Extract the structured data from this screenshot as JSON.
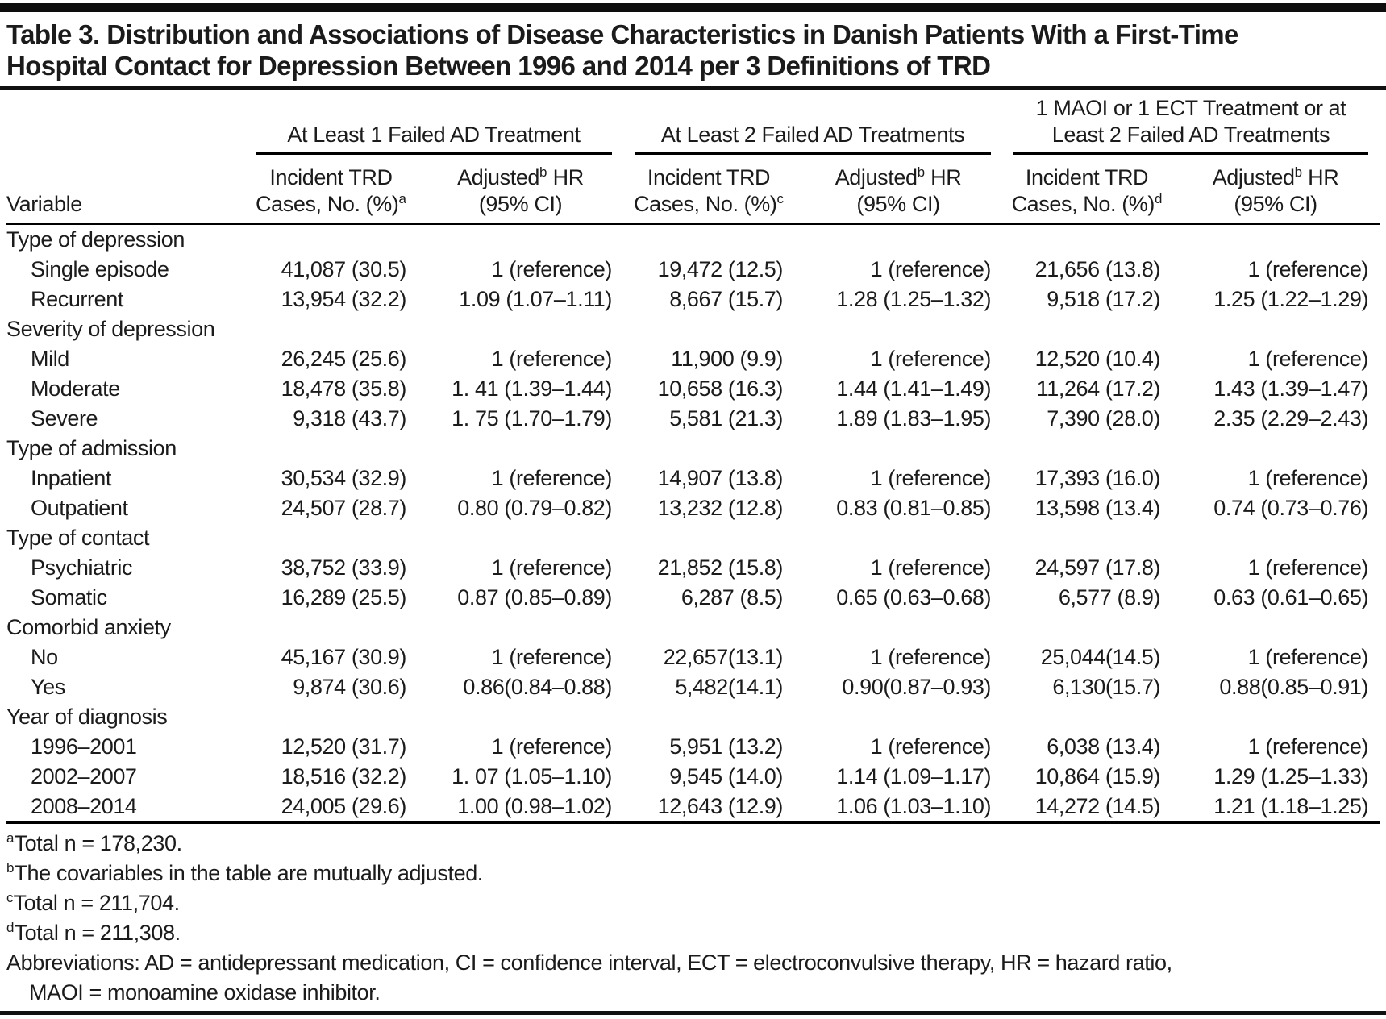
{
  "title_lines": [
    "Table 3. Distribution and Associations of Disease Characteristics in Danish Patients With a First-Time",
    "Hospital Contact for Depression Between 1996 and 2014 per 3 Definitions of TRD"
  ],
  "header": {
    "variable": "Variable",
    "groups": [
      {
        "label_lines": [
          "At Least 1 Failed AD Treatment"
        ],
        "cases": {
          "line1": "Incident TRD",
          "line2": "Cases, No. (%)",
          "sup": "a"
        },
        "hr": {
          "pre": "Adjusted",
          "sup": "b",
          "post": " HR",
          "line2": "(95% CI)"
        }
      },
      {
        "label_lines": [
          "At Least 2 Failed AD Treatments"
        ],
        "cases": {
          "line1": "Incident TRD",
          "line2": "Cases, No. (%)",
          "sup": "c"
        },
        "hr": {
          "pre": "Adjusted",
          "sup": "b",
          "post": " HR",
          "line2": "(95% CI)"
        }
      },
      {
        "label_lines": [
          "1 MAOI or 1 ECT Treatment or at",
          "Least 2 Failed AD Treatments"
        ],
        "cases": {
          "line1": "Incident TRD",
          "line2": "Cases, No. (%)",
          "sup": "d"
        },
        "hr": {
          "pre": "Adjusted",
          "sup": "b",
          "post": " HR",
          "line2": "(95% CI)"
        }
      }
    ]
  },
  "rows": [
    {
      "type": "section",
      "label": "Type of depression"
    },
    {
      "type": "data",
      "label": "Single episode",
      "cells": [
        "41,087 (30.5)",
        "1 (reference)",
        "19,472 (12.5)",
        "1 (reference)",
        "21,656 (13.8)",
        "1 (reference)"
      ]
    },
    {
      "type": "data",
      "label": "Recurrent",
      "cells": [
        "13,954 (32.2)",
        "1.09 (1.07–1.11)",
        "8,667 (15.7)",
        "1.28 (1.25–1.32)",
        "9,518 (17.2)",
        "1.25 (1.22–1.29)"
      ]
    },
    {
      "type": "section",
      "label": "Severity of depression"
    },
    {
      "type": "data",
      "label": "Mild",
      "cells": [
        "26,245 (25.6)",
        "1 (reference)",
        "11,900 (9.9)",
        "1 (reference)",
        "12,520 (10.4)",
        "1 (reference)"
      ]
    },
    {
      "type": "data",
      "label": "Moderate",
      "cells": [
        "18,478 (35.8)",
        "1. 41 (1.39–1.44)",
        "10,658 (16.3)",
        "1.44 (1.41–1.49)",
        "11,264 (17.2)",
        "1.43 (1.39–1.47)"
      ]
    },
    {
      "type": "data",
      "label": "Severe",
      "cells": [
        "9,318 (43.7)",
        "1. 75 (1.70–1.79)",
        "5,581 (21.3)",
        "1.89 (1.83–1.95)",
        "7,390 (28.0)",
        "2.35 (2.29–2.43)"
      ]
    },
    {
      "type": "section",
      "label": "Type of admission"
    },
    {
      "type": "data",
      "label": "Inpatient",
      "cells": [
        "30,534 (32.9)",
        "1 (reference)",
        "14,907 (13.8)",
        "1 (reference)",
        "17,393 (16.0)",
        "1 (reference)"
      ]
    },
    {
      "type": "data",
      "label": "Outpatient",
      "cells": [
        "24,507 (28.7)",
        "0.80 (0.79–0.82)",
        "13,232 (12.8)",
        "0.83 (0.81–0.85)",
        "13,598 (13.4)",
        "0.74 (0.73–0.76)"
      ]
    },
    {
      "type": "section",
      "label": "Type of contact"
    },
    {
      "type": "data",
      "label": "Psychiatric",
      "cells": [
        "38,752 (33.9)",
        "1 (reference)",
        "21,852 (15.8)",
        "1 (reference)",
        "24,597 (17.8)",
        "1 (reference)"
      ]
    },
    {
      "type": "data",
      "label": "Somatic",
      "cells": [
        "16,289 (25.5)",
        "0.87 (0.85–0.89)",
        "6,287 (8.5)",
        "0.65 (0.63–0.68)",
        "6,577 (8.9)",
        "0.63 (0.61–0.65)"
      ]
    },
    {
      "type": "section",
      "label": "Comorbid anxiety"
    },
    {
      "type": "data",
      "label": "No",
      "cells": [
        "45,167 (30.9)",
        "1 (reference)",
        "22,657(13.1)",
        "1 (reference)",
        "25,044(14.5)",
        "1 (reference)"
      ]
    },
    {
      "type": "data",
      "label": "Yes",
      "cells": [
        "9,874 (30.6)",
        "0.86(0.84–0.88)",
        "5,482(14.1)",
        "0.90(0.87–0.93)",
        "6,130(15.7)",
        "0.88(0.85–0.91)"
      ]
    },
    {
      "type": "section",
      "label": "Year of diagnosis"
    },
    {
      "type": "data",
      "label": "1996–2001",
      "cells": [
        "12,520 (31.7)",
        "1 (reference)",
        "5,951 (13.2)",
        "1 (reference)",
        "6,038 (13.4)",
        "1 (reference)"
      ]
    },
    {
      "type": "data",
      "label": "2002–2007",
      "cells": [
        "18,516 (32.2)",
        "1. 07 (1.05–1.10)",
        "9,545 (14.0)",
        "1.14 (1.09–1.17)",
        "10,864 (15.9)",
        "1.29 (1.25–1.33)"
      ]
    },
    {
      "type": "data",
      "label": "2008–2014",
      "cells": [
        "24,005 (29.6)",
        "1.00 (0.98–1.02)",
        "12,643 (12.9)",
        "1.06 (1.03–1.10)",
        "14,272 (14.5)",
        "1.21 (1.18–1.25)"
      ]
    }
  ],
  "footnotes": [
    {
      "sup": "a",
      "text": "Total n = 178,230."
    },
    {
      "sup": "b",
      "text": "The covariables in the table are mutually adjusted."
    },
    {
      "sup": "c",
      "text": "Total n = 211,704."
    },
    {
      "sup": "d",
      "text": "Total n = 211,308."
    },
    {
      "sup": "",
      "text": "Abbreviations: AD = antidepressant medication, CI = confidence interval, ECT = electroconvulsive therapy, HR = hazard ratio,",
      "text2": "MAOI = monoamine oxidase inhibitor."
    }
  ]
}
